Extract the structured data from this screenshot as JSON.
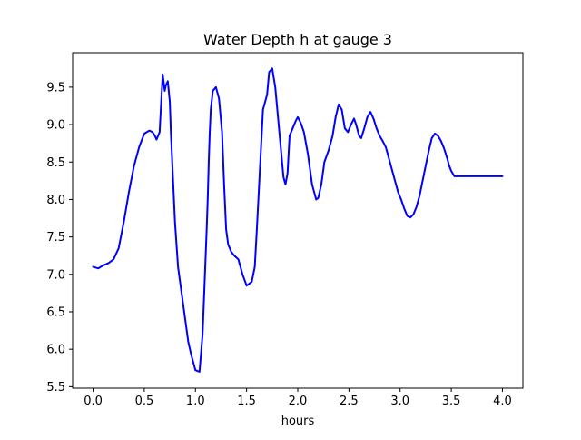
{
  "chart_data": {
    "type": "line",
    "title": "Water Depth h at gauge 3",
    "xlabel": "hours",
    "ylabel": "",
    "xlim": [
      -0.2,
      4.2
    ],
    "ylim": [
      5.48,
      9.96
    ],
    "xticks": [
      0.0,
      0.5,
      1.0,
      1.5,
      2.0,
      2.5,
      3.0,
      3.5,
      4.0
    ],
    "xtick_labels": [
      "0.0",
      "0.5",
      "1.0",
      "1.5",
      "2.0",
      "2.5",
      "3.0",
      "3.5",
      "4.0"
    ],
    "yticks": [
      5.5,
      6.0,
      6.5,
      7.0,
      7.5,
      8.0,
      8.5,
      9.0,
      9.5
    ],
    "ytick_labels": [
      "5.5",
      "6.0",
      "6.5",
      "7.0",
      "7.5",
      "8.0",
      "8.5",
      "9.0",
      "9.5"
    ],
    "grid": false,
    "legend": "none",
    "series": [
      {
        "color": "#0000ff",
        "x": [
          0.0,
          0.05,
          0.1,
          0.15,
          0.2,
          0.25,
          0.3,
          0.35,
          0.4,
          0.45,
          0.5,
          0.55,
          0.58,
          0.6,
          0.62,
          0.65,
          0.68,
          0.7,
          0.71,
          0.73,
          0.75,
          0.76,
          0.78,
          0.8,
          0.83,
          0.86,
          0.9,
          0.93,
          0.96,
          1.0,
          1.04,
          1.07,
          1.09,
          1.11,
          1.12,
          1.13,
          1.14,
          1.15,
          1.17,
          1.2,
          1.23,
          1.26,
          1.28,
          1.3,
          1.32,
          1.35,
          1.38,
          1.42,
          1.46,
          1.5,
          1.55,
          1.58,
          1.6,
          1.63,
          1.66,
          1.68,
          1.7,
          1.72,
          1.75,
          1.78,
          1.8,
          1.82,
          1.84,
          1.86,
          1.88,
          1.9,
          1.92,
          1.95,
          1.98,
          2.0,
          2.03,
          2.06,
          2.1,
          2.14,
          2.18,
          2.2,
          2.23,
          2.26,
          2.3,
          2.34,
          2.37,
          2.4,
          2.43,
          2.46,
          2.49,
          2.52,
          2.55,
          2.57,
          2.6,
          2.62,
          2.65,
          2.68,
          2.71,
          2.74,
          2.77,
          2.8,
          2.83,
          2.86,
          2.89,
          2.92,
          2.95,
          2.98,
          3.01,
          3.04,
          3.07,
          3.1,
          3.13,
          3.16,
          3.19,
          3.22,
          3.25,
          3.28,
          3.31,
          3.34,
          3.37,
          3.4,
          3.43,
          3.46,
          3.48,
          3.5,
          3.53,
          3.56,
          3.59,
          3.62,
          3.65,
          3.68,
          3.71,
          3.74,
          3.77,
          3.8,
          3.83,
          3.86,
          3.89,
          3.92,
          3.95,
          3.98,
          4.0
        ],
        "y": [
          7.1,
          7.08,
          7.12,
          7.15,
          7.2,
          7.35,
          7.7,
          8.1,
          8.45,
          8.7,
          8.88,
          8.92,
          8.9,
          8.86,
          8.8,
          8.9,
          9.67,
          9.45,
          9.52,
          9.58,
          9.3,
          8.9,
          8.3,
          7.7,
          7.1,
          6.8,
          6.4,
          6.1,
          5.92,
          5.72,
          5.7,
          6.2,
          6.9,
          7.6,
          8.0,
          8.5,
          8.9,
          9.2,
          9.45,
          9.5,
          9.35,
          8.9,
          8.2,
          7.6,
          7.4,
          7.3,
          7.25,
          7.2,
          7.0,
          6.85,
          6.9,
          7.1,
          7.6,
          8.4,
          9.2,
          9.3,
          9.4,
          9.7,
          9.75,
          9.5,
          9.2,
          8.9,
          8.6,
          8.3,
          8.2,
          8.35,
          8.85,
          8.95,
          9.05,
          9.1,
          9.02,
          8.9,
          8.6,
          8.2,
          8.0,
          8.02,
          8.2,
          8.5,
          8.65,
          8.85,
          9.1,
          9.27,
          9.2,
          8.95,
          8.9,
          9.0,
          9.08,
          9.0,
          8.85,
          8.82,
          8.95,
          9.1,
          9.17,
          9.08,
          8.95,
          8.85,
          8.78,
          8.7,
          8.55,
          8.4,
          8.25,
          8.1,
          8.0,
          7.88,
          7.78,
          7.76,
          7.8,
          7.9,
          8.05,
          8.25,
          8.45,
          8.65,
          8.82,
          8.88,
          8.85,
          8.78,
          8.68,
          8.55,
          8.45,
          8.38,
          8.31,
          8.31,
          8.31,
          8.31,
          8.31,
          8.31,
          8.31,
          8.31,
          8.31,
          8.31,
          8.31,
          8.31,
          8.31,
          8.31,
          8.31,
          8.31,
          8.31
        ]
      }
    ]
  }
}
